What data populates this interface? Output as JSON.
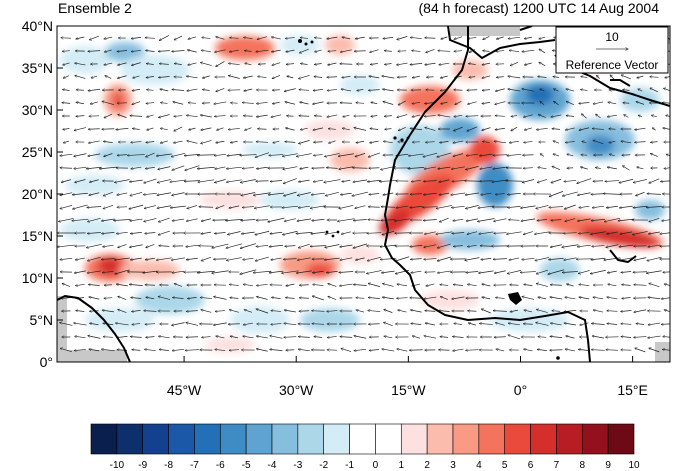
{
  "title_left": "Ensemble 2",
  "title_right": "(84 h forecast) 1200 UTC 14 Aug 2004",
  "reference_vector": {
    "value": "10",
    "label": "Reference Vector"
  },
  "y_axis": {
    "ticks": [
      "0°",
      "5°N",
      "10°N",
      "15°N",
      "20°N",
      "25°N",
      "30°N",
      "35°N",
      "40°N"
    ],
    "lat_values": [
      0,
      5,
      10,
      15,
      20,
      25,
      30,
      35,
      40
    ]
  },
  "x_axis": {
    "ticks": [
      "45°W",
      "30°W",
      "15°W",
      "0°",
      "15°E"
    ],
    "lon_values": [
      -45,
      -30,
      -15,
      0,
      15
    ],
    "lon_range": [
      -62,
      20
    ]
  },
  "colorbar": {
    "labels": [
      "-10",
      "-9",
      "-8",
      "-7",
      "-6",
      "-5",
      "-4",
      "-3",
      "-2",
      "-1",
      "0",
      "1",
      "2",
      "3",
      "4",
      "5",
      "6",
      "7",
      "8",
      "9",
      "10"
    ],
    "colors": [
      "#0a1f4d",
      "#0d2f6b",
      "#14418f",
      "#1b59a8",
      "#2370b6",
      "#3f8cc4",
      "#5fa4d0",
      "#86bede",
      "#acd7e9",
      "#d3ecf6",
      "#ffffff",
      "#ffffff",
      "#fde0e0",
      "#fbbcae",
      "#f89a84",
      "#f4735d",
      "#ea4a3b",
      "#d52f2b",
      "#b81d24",
      "#93111e",
      "#6d0a14"
    ]
  }
}
